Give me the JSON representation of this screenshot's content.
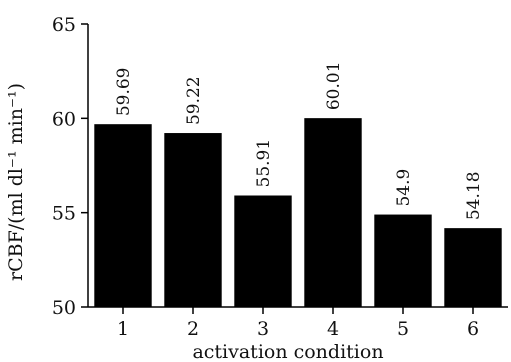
{
  "chart_data": {
    "type": "bar",
    "title": "",
    "xlabel": "activation condition",
    "ylabel": "rCBF/(ml dl⁻¹ min⁻¹)",
    "categories": [
      "1",
      "2",
      "3",
      "4",
      "5",
      "6"
    ],
    "values": [
      59.69,
      59.22,
      55.91,
      60.01,
      54.9,
      54.18
    ],
    "data_labels": [
      "59.69",
      "59.22",
      "55.91",
      "60.01",
      "54.9",
      "54.18"
    ],
    "ylim": [
      50,
      65
    ],
    "yticks": [
      50,
      55,
      60,
      65
    ],
    "ytick_labels": [
      "50",
      "55",
      "60",
      "65"
    ],
    "grid": false,
    "legend": "none",
    "bar_color": "#000000"
  }
}
